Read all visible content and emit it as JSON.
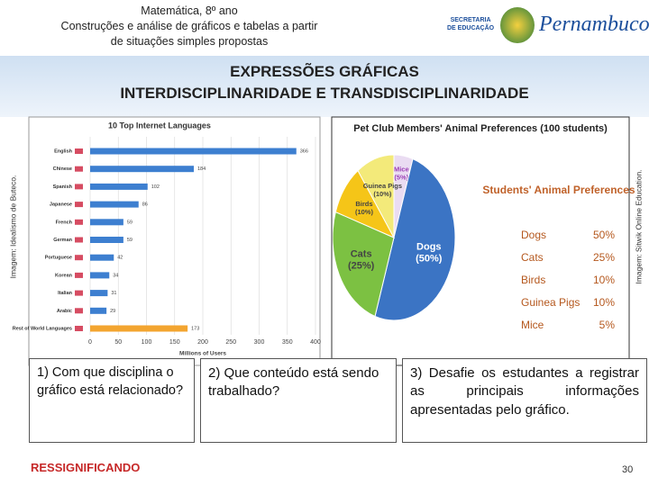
{
  "header": {
    "lines": [
      "Matemática, 8º ano",
      "Construções e análise de gráficos e tabelas a partir",
      "de situações simples propostas"
    ],
    "logo_left": [
      "SECRETARIA",
      "DE EDUCAÇÃO"
    ],
    "logo_right": "Pernambuco"
  },
  "banner": {
    "title": "EXPRESSÕES GRÁFICAS",
    "subtitle": "INTERDISCIPLINARIDADE E TRANSDISCIPLINARIDADE"
  },
  "chart_data": [
    {
      "type": "hbar",
      "title": "10 Top Internet Languages",
      "categories": [
        "English",
        "Chinese",
        "Spanish",
        "Japanese",
        "French",
        "German",
        "Portuguese",
        "Korean",
        "Italian",
        "Arabic",
        "Rest of World Languages"
      ],
      "values": [
        366,
        184,
        102,
        86,
        59,
        59,
        42,
        34,
        31,
        29,
        173
      ],
      "colors": [
        "#3d7fd0",
        "#3d7fd0",
        "#3d7fd0",
        "#3d7fd0",
        "#3d7fd0",
        "#3d7fd0",
        "#3d7fd0",
        "#3d7fd0",
        "#3d7fd0",
        "#3d7fd0",
        "#f3a530"
      ],
      "xlim": [
        0,
        400
      ],
      "xticks": [
        0,
        50,
        100,
        150,
        200,
        250,
        300,
        350,
        400
      ],
      "grid": true,
      "xlabel": "Millions of Users",
      "credit": "Imagem: Idealismo de Buteco."
    },
    {
      "type": "pie",
      "title": "Pet Club Members' Animal Preferences (100 students)",
      "categories": [
        "Mice",
        "Dogs",
        "Cats",
        "Birds",
        "Guinea Pigs"
      ],
      "values": [
        5,
        50,
        25,
        10,
        10
      ],
      "value_labels": [
        "(5%)",
        "(50%)",
        "(25%)",
        "(10%)",
        "(10%)"
      ],
      "colors": [
        "#eadcf2",
        "#3b74c4",
        "#7cc142",
        "#f5c518",
        "#f3ea7a"
      ],
      "credit": "Imagem: Sitwik Online Education."
    }
  ],
  "table": {
    "title": "Students' Animal Preferences",
    "rows": [
      [
        "Dogs",
        "50%"
      ],
      [
        "Cats",
        "25%"
      ],
      [
        "Birds",
        "10%"
      ],
      [
        "Guinea Pigs",
        "10%"
      ],
      [
        "Mice",
        "5%"
      ]
    ]
  },
  "questions": [
    "1) Com que disciplina o gráfico está relacionado?",
    "2) Que conteúdo está sendo trabalhado?",
    "3) Desafie os estudantes a registrar as principais informações apresentadas pelo gráfico."
  ],
  "footer": {
    "label": "RESSIGNIFICANDO",
    "page": "30"
  }
}
